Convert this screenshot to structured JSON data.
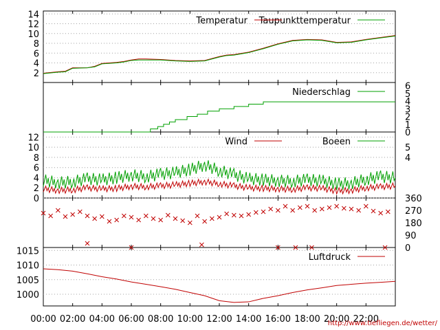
{
  "colors": {
    "red": "#c00000",
    "green": "#00a000",
    "grid": "#a0a0a0",
    "axis": "#000000"
  },
  "credit": "http://www.tiefliegen.de/wetter/",
  "chart_data": [
    {
      "type": "line",
      "panel": "temperature",
      "x_ticks": [
        "00:00",
        "02:00",
        "04:00",
        "06:00",
        "08:00",
        "10:00",
        "12:00",
        "14:00",
        "16:00",
        "18:00",
        "20:00",
        "22:00"
      ],
      "ylim": [
        0,
        14.6
      ],
      "y_ticks_left": [
        2,
        4,
        6,
        8,
        10,
        12,
        14
      ],
      "grid": true,
      "legend_placement": "top",
      "series": [
        {
          "name": "Temperatur",
          "color": "#c00000",
          "x": [
            0,
            1,
            1.5,
            2,
            3,
            3.5,
            4,
            5,
            5.5,
            6,
            6.5,
            7,
            8,
            9,
            10,
            11,
            12,
            12.5,
            13,
            14,
            15,
            16,
            17,
            18,
            19,
            20,
            21,
            22,
            23,
            24
          ],
          "values": [
            1.9,
            2.2,
            2.3,
            3.0,
            3.0,
            3.3,
            3.9,
            4.1,
            4.3,
            4.6,
            4.8,
            4.8,
            4.7,
            4.5,
            4.4,
            4.5,
            5.3,
            5.6,
            5.7,
            6.2,
            7.0,
            7.9,
            8.6,
            8.8,
            8.7,
            8.2,
            8.3,
            8.8,
            9.2,
            9.6
          ]
        },
        {
          "name": "Taupunkttemperatur",
          "color": "#00a000",
          "x": [
            0,
            1,
            1.5,
            2,
            3,
            3.5,
            4,
            5,
            5.5,
            6,
            6.5,
            7,
            8,
            9,
            10,
            11,
            12,
            12.5,
            13,
            14,
            15,
            16,
            17,
            18,
            19,
            20,
            21,
            22,
            23,
            24
          ],
          "values": [
            1.8,
            2.1,
            2.2,
            2.9,
            3.0,
            3.2,
            3.8,
            4.0,
            4.2,
            4.5,
            4.6,
            4.6,
            4.6,
            4.4,
            4.3,
            4.4,
            5.2,
            5.5,
            5.6,
            6.1,
            6.9,
            7.8,
            8.5,
            8.7,
            8.6,
            8.1,
            8.2,
            8.7,
            9.1,
            9.5
          ]
        }
      ]
    },
    {
      "type": "line",
      "panel": "precipitation",
      "ylim": [
        0,
        6.4
      ],
      "y_ticks_right": [
        0,
        1,
        2,
        3,
        4,
        5,
        6
      ],
      "legend_placement": "top",
      "series": [
        {
          "name": "Niederschlag",
          "color": "#00a000",
          "x": [
            0,
            6.8,
            7.3,
            7.8,
            8.2,
            8.6,
            9.0,
            9.8,
            10.5,
            11.2,
            12,
            13,
            14.0,
            15,
            16,
            17,
            18,
            19,
            20,
            21,
            22,
            23,
            24
          ],
          "values": [
            0,
            0,
            0.4,
            0.7,
            1.0,
            1.3,
            1.6,
            2.0,
            2.3,
            2.7,
            3.0,
            3.3,
            3.6,
            3.9,
            3.9,
            3.9,
            3.9,
            3.9,
            3.9,
            3.9,
            3.9,
            3.9,
            3.9
          ],
          "step": true
        }
      ]
    },
    {
      "type": "line",
      "panel": "wind",
      "ylim": [
        0,
        13
      ],
      "y_ticks_left": [
        0,
        2,
        4,
        6,
        8,
        10,
        12
      ],
      "y_ticks_right": [
        4,
        5
      ],
      "legend_placement": "top",
      "series": [
        {
          "name": "Wind",
          "color": "#c00000",
          "x": [
            0,
            1,
            2,
            3,
            4,
            5,
            6,
            7,
            8,
            9,
            10,
            11,
            12,
            13,
            14,
            15,
            16,
            17,
            18,
            19,
            20,
            21,
            22,
            23,
            24
          ],
          "values": [
            1.8,
            1.5,
            1.6,
            2.0,
            1.8,
            1.9,
            2.3,
            2.2,
            2.4,
            2.6,
            2.9,
            3.2,
            2.8,
            2.4,
            2.0,
            1.9,
            1.8,
            1.7,
            2.0,
            1.9,
            1.4,
            1.5,
            2.0,
            2.2,
            2.4
          ]
        },
        {
          "name": "Boeen",
          "color": "#00a000",
          "x": [
            0,
            1,
            2,
            3,
            4,
            5,
            6,
            7,
            8,
            9,
            10,
            11,
            12,
            13,
            14,
            15,
            16,
            17,
            18,
            19,
            20,
            21,
            22,
            23,
            24
          ],
          "values": [
            3.5,
            3.0,
            3.2,
            3.8,
            3.6,
            4.0,
            4.5,
            4.2,
            4.7,
            5.0,
            5.6,
            6.5,
            5.4,
            4.6,
            3.8,
            3.6,
            3.4,
            3.3,
            3.6,
            3.4,
            2.8,
            2.9,
            3.7,
            4.2,
            4.0
          ]
        }
      ]
    },
    {
      "type": "scatter",
      "panel": "wind-direction",
      "ylim": [
        0,
        360
      ],
      "y_ticks_right": [
        0,
        90,
        180,
        270,
        360
      ],
      "series": [
        {
          "name": "",
          "color": "#c00000",
          "marker": "x",
          "x": [
            0,
            0.5,
            1,
            1.5,
            2,
            2.5,
            3,
            3.5,
            4,
            4.5,
            5,
            5.5,
            6,
            6.5,
            7,
            7.5,
            8,
            8.5,
            9,
            9.5,
            10,
            10.5,
            11,
            11.5,
            12,
            12.5,
            13,
            13.5,
            14,
            14.5,
            15,
            15.5,
            16,
            16.5,
            17,
            17.5,
            18,
            18.5,
            19,
            19.5,
            20,
            20.5,
            21,
            21.5,
            22,
            22.5,
            23,
            23.5,
            3.0,
            6.0,
            10.8,
            16.0,
            17.2,
            18.3,
            23.3
          ],
          "values": [
            250,
            230,
            270,
            225,
            240,
            260,
            230,
            210,
            225,
            190,
            200,
            230,
            220,
            200,
            230,
            210,
            200,
            235,
            210,
            195,
            180,
            230,
            190,
            210,
            220,
            245,
            235,
            230,
            240,
            255,
            260,
            280,
            270,
            300,
            270,
            290,
            300,
            270,
            280,
            290,
            300,
            285,
            280,
            270,
            300,
            265,
            250,
            260,
            30,
            0,
            20,
            0,
            0,
            0,
            0
          ]
        }
      ]
    },
    {
      "type": "line",
      "panel": "pressure",
      "ylim": [
        996,
        1016
      ],
      "y_ticks_left": [
        1000,
        1005,
        1010,
        1015
      ],
      "legend_placement": "top",
      "series": [
        {
          "name": "Luftdruck",
          "color": "#c00000",
          "x": [
            0,
            1,
            2,
            3,
            4,
            5,
            6,
            7,
            8,
            9,
            10,
            11,
            12,
            13,
            14,
            15,
            16,
            17,
            18,
            19,
            20,
            21,
            22,
            23,
            24
          ],
          "values": [
            1008.7,
            1008.4,
            1007.9,
            1007.0,
            1006.0,
            1005.2,
            1004.2,
            1003.4,
            1002.6,
            1001.7,
            1000.6,
            999.5,
            997.8,
            997.2,
            997.4,
            998.6,
            999.5,
            1000.6,
            1001.5,
            1002.2,
            1003.0,
            1003.4,
            1003.8,
            1004.1,
            1004.4
          ]
        }
      ]
    }
  ]
}
